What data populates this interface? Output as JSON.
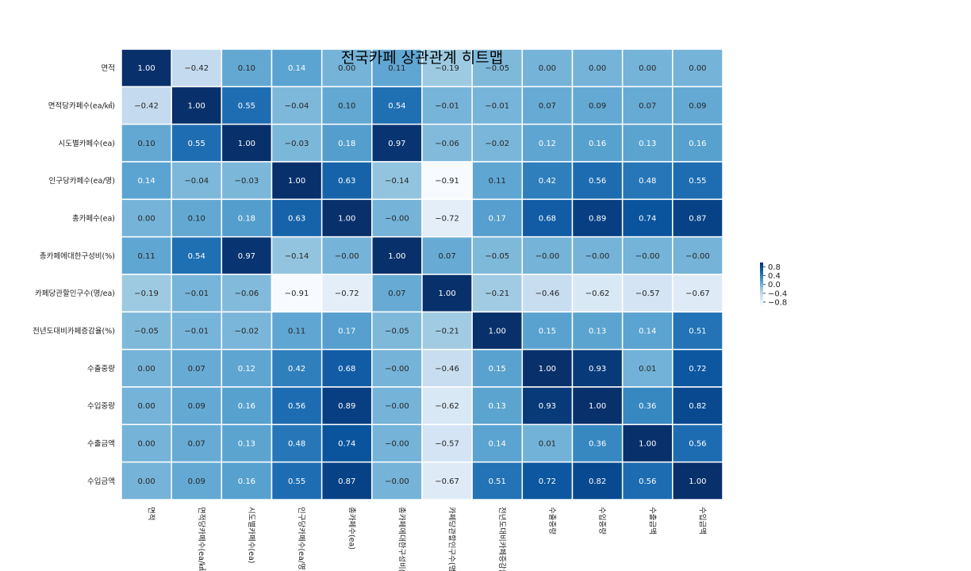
{
  "chart_data": {
    "type": "heatmap",
    "title": "전국카페 상관관계 히트맵",
    "labels": [
      "면적",
      "면적당카페수(ea/㎢)",
      "시도별카페수(ea)",
      "인구당카페수(ea/명)",
      "총카페수(ea)",
      "총카페에대한구성비(%)",
      "카페당관할인구수(명/ea)",
      "전년도대비카페증감율(%)",
      "수출중량",
      "수입중량",
      "수출금액",
      "수입금액"
    ],
    "matrix": [
      [
        1.0,
        -0.42,
        0.1,
        0.14,
        0.0,
        0.11,
        -0.19,
        -0.05,
        0.0,
        0.0,
        0.0,
        0.0
      ],
      [
        -0.42,
        1.0,
        0.55,
        -0.04,
        0.1,
        0.54,
        -0.01,
        -0.01,
        0.07,
        0.09,
        0.07,
        0.09
      ],
      [
        0.1,
        0.55,
        1.0,
        -0.03,
        0.18,
        0.97,
        -0.06,
        -0.02,
        0.12,
        0.16,
        0.13,
        0.16
      ],
      [
        0.14,
        -0.04,
        -0.03,
        1.0,
        0.63,
        -0.14,
        -0.91,
        0.11,
        0.42,
        0.56,
        0.48,
        0.55
      ],
      [
        0.0,
        0.1,
        0.18,
        0.63,
        1.0,
        -0.0,
        -0.72,
        0.17,
        0.68,
        0.89,
        0.74,
        0.87
      ],
      [
        0.11,
        0.54,
        0.97,
        -0.14,
        -0.0,
        1.0,
        0.07,
        -0.05,
        -0.0,
        -0.0,
        -0.0,
        -0.0
      ],
      [
        -0.19,
        -0.01,
        -0.06,
        -0.91,
        -0.72,
        0.07,
        1.0,
        -0.21,
        -0.46,
        -0.62,
        -0.57,
        -0.67
      ],
      [
        -0.05,
        -0.01,
        -0.02,
        0.11,
        0.17,
        -0.05,
        -0.21,
        1.0,
        0.15,
        0.13,
        0.14,
        0.51
      ],
      [
        0.0,
        0.07,
        0.12,
        0.42,
        0.68,
        -0.0,
        -0.46,
        0.15,
        1.0,
        0.93,
        0.01,
        0.72
      ],
      [
        0.0,
        0.09,
        0.16,
        0.56,
        0.89,
        -0.0,
        -0.62,
        0.13,
        0.93,
        1.0,
        0.36,
        0.82
      ],
      [
        0.0,
        0.07,
        0.13,
        0.48,
        0.74,
        -0.0,
        -0.57,
        0.14,
        0.01,
        0.36,
        1.0,
        0.56
      ],
      [
        0.0,
        0.09,
        0.16,
        0.55,
        0.87,
        -0.0,
        -0.67,
        0.51,
        0.72,
        0.82,
        0.56,
        1.0
      ]
    ],
    "vmin": -0.91,
    "vmax": 1.0,
    "colormap": "Blues",
    "colorbar_ticks": [
      0.8,
      0.4,
      0.0,
      -0.4,
      -0.8
    ],
    "legend_position": "right",
    "grid": false
  },
  "colors": {
    "low": "#f7fbff",
    "high": "#08306b",
    "cell_border": "#ffffff"
  }
}
